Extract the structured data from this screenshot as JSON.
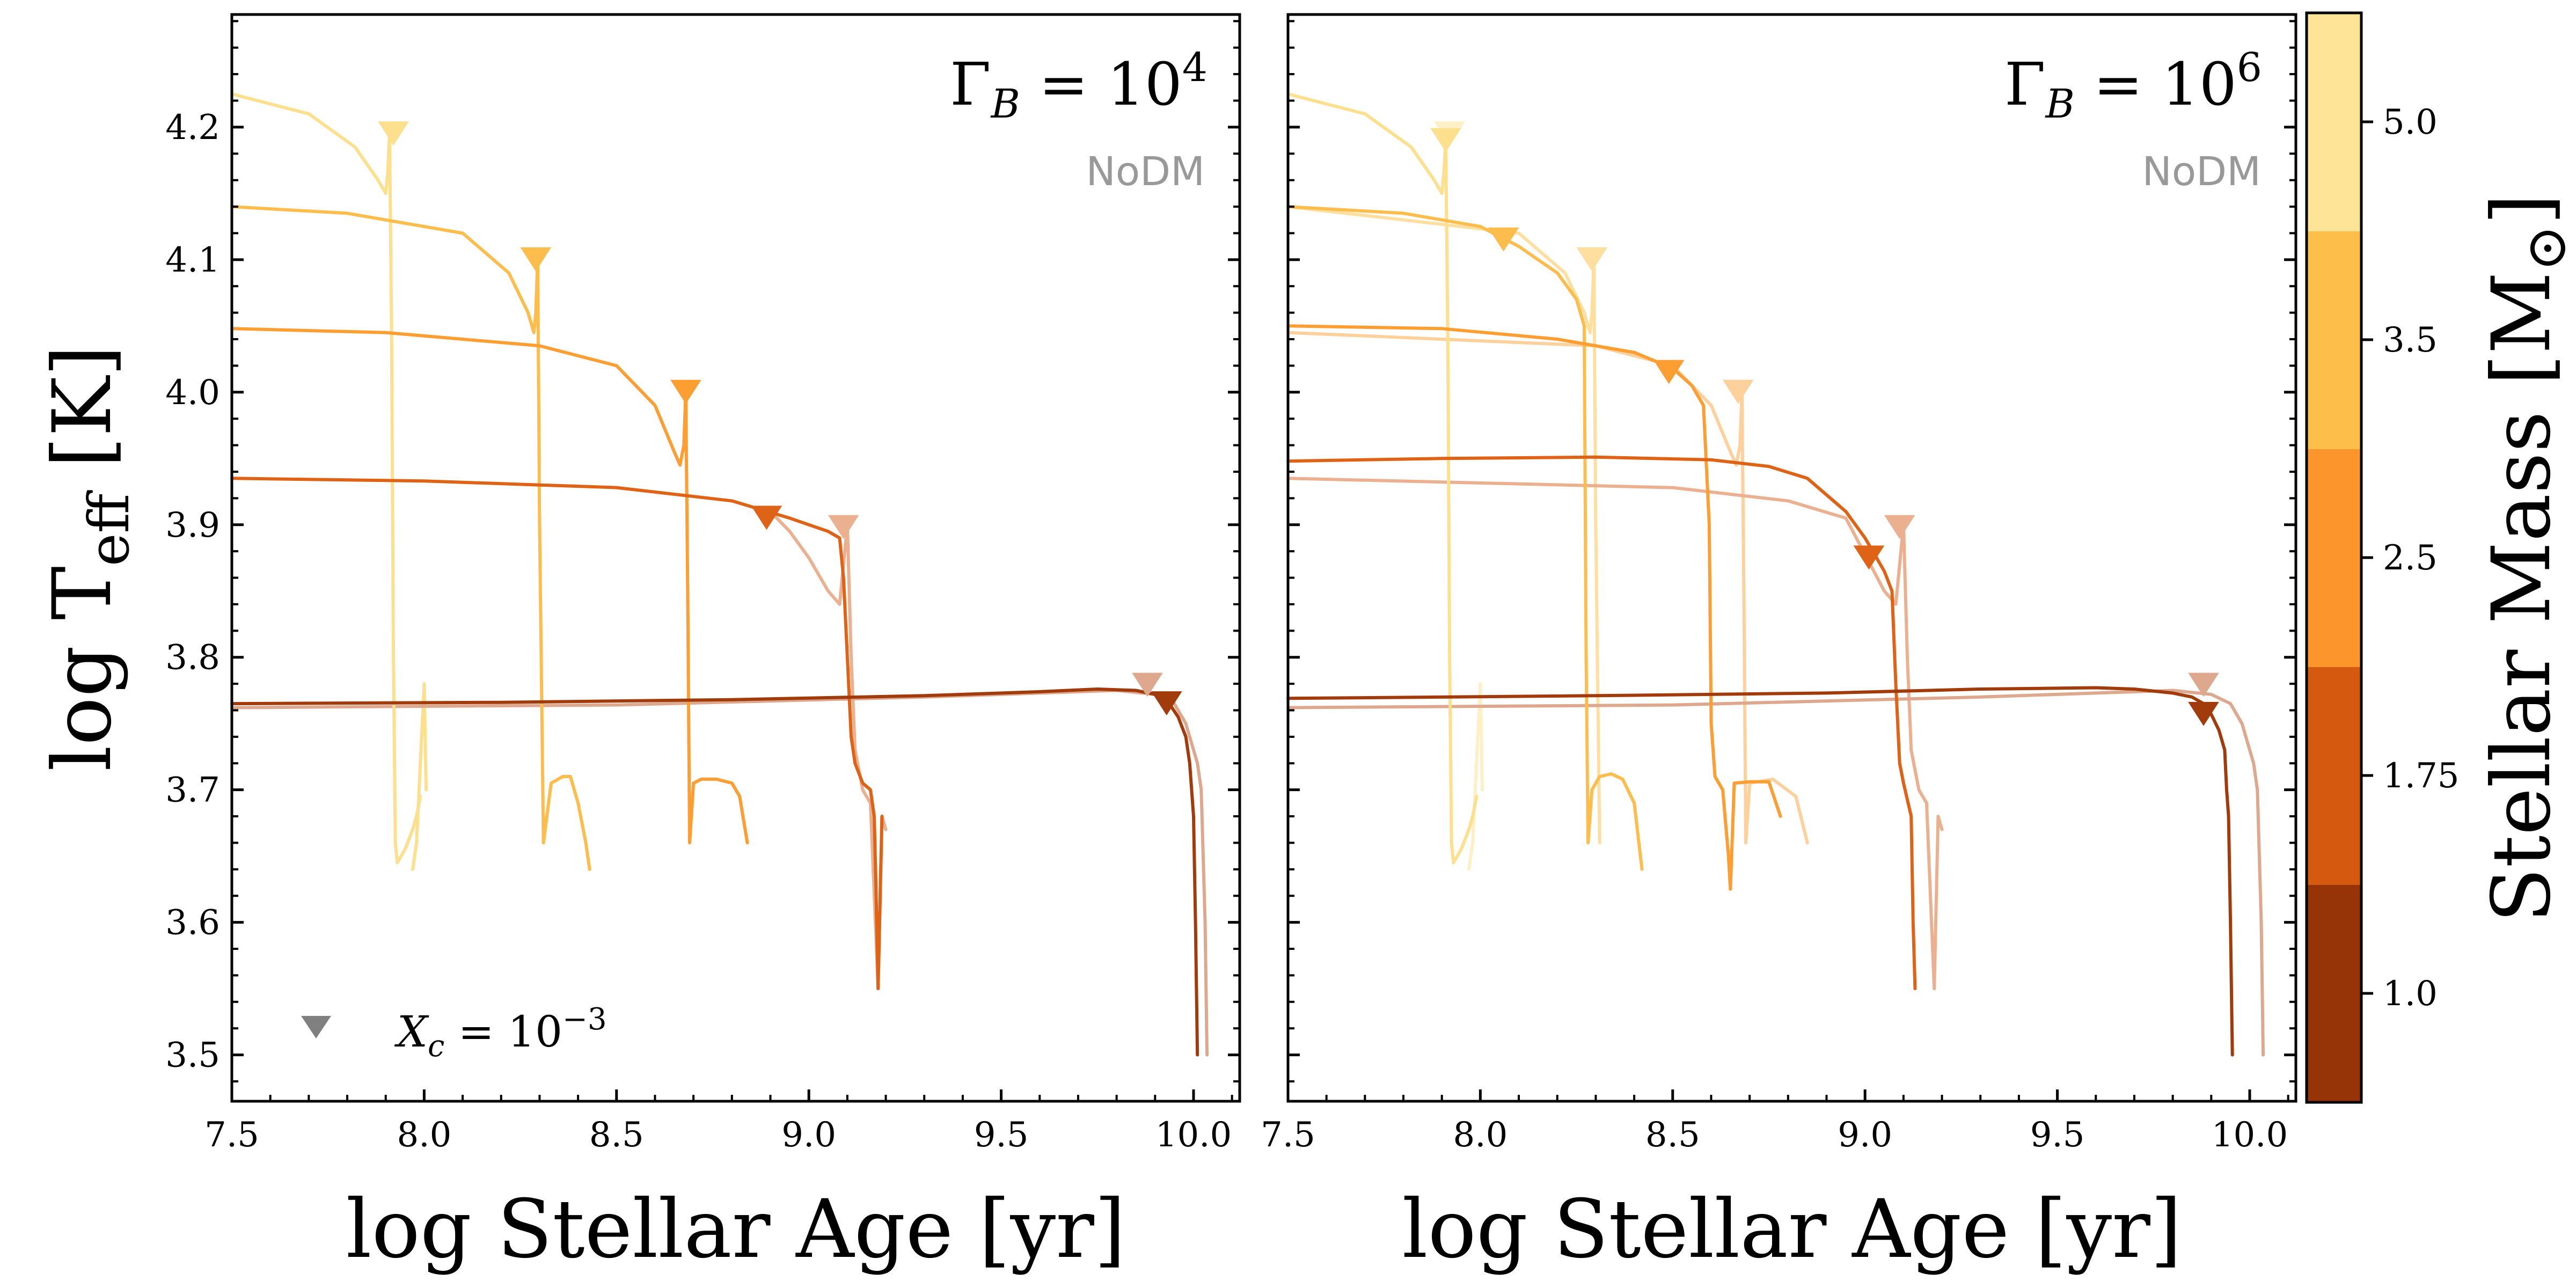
{
  "chart_data": [
    {
      "type": "line",
      "panel_label": "Γ_B = 10^4",
      "label_main": "Γ",
      "label_sub": "B",
      "label_eq": " = 10",
      "label_sup": "4",
      "reference_label": "NoDM",
      "xlabel": "log Stellar Age [yr]",
      "ylabel": "log T_eff [K]",
      "ylabel_text": "log T",
      "ylabel_sub": "eff",
      "ylabel_unit": " [K]",
      "xlim": [
        7.5,
        10.12
      ],
      "ylim": [
        3.465,
        4.285
      ],
      "xticks": [
        "7.5",
        "8.0",
        "8.5",
        "9.0",
        "9.5",
        "10.0"
      ],
      "yticks": [
        "3.5",
        "3.6",
        "3.7",
        "3.8",
        "3.9",
        "4.0",
        "4.1",
        "4.2"
      ],
      "marker_legend": "X_c = 10^-3",
      "marker_legend_main": "X",
      "marker_legend_sub": "c",
      "marker_legend_eq": " = 10",
      "marker_legend_sup": "−3",
      "series": [
        {
          "mass": 5.0,
          "color": "#fde08d",
          "variant": "DM",
          "x": [
            7.5,
            7.7,
            7.82,
            7.88,
            7.9,
            7.905,
            7.91,
            7.915,
            7.92,
            7.925,
            7.93,
            7.95,
            7.97,
            7.98,
            7.99
          ],
          "y": [
            4.225,
            4.21,
            4.185,
            4.16,
            4.15,
            4.165,
            4.195,
            4.05,
            3.8,
            3.66,
            3.645,
            3.655,
            3.67,
            3.68,
            3.695
          ],
          "marker": [
            7.92,
            4.195
          ]
        },
        {
          "mass": 5.0,
          "color": "#fde08d",
          "variant": "NoDM",
          "x": [
            7.97,
            7.98,
            7.99,
            8.0,
            8.005
          ],
          "y": [
            3.64,
            3.66,
            3.72,
            3.78,
            3.7
          ],
          "marker": null
        },
        {
          "mass": 3.5,
          "color": "#fdbd4c",
          "variant": "DM",
          "x": [
            7.5,
            7.8,
            8.1,
            8.22,
            8.27,
            8.285,
            8.29,
            8.295,
            8.3,
            8.31,
            8.33,
            8.36,
            8.38,
            8.4,
            8.42,
            8.43
          ],
          "y": [
            4.14,
            4.135,
            4.12,
            4.09,
            4.06,
            4.045,
            4.06,
            4.1,
            3.9,
            3.66,
            3.705,
            3.71,
            3.71,
            3.69,
            3.66,
            3.64
          ],
          "marker": [
            8.29,
            4.1
          ]
        },
        {
          "mass": 2.5,
          "color": "#fd9e32",
          "variant": "DM",
          "x": [
            7.5,
            7.9,
            8.3,
            8.5,
            8.6,
            8.65,
            8.665,
            8.675,
            8.68,
            8.685,
            8.69,
            8.7,
            8.72,
            8.76,
            8.8,
            8.82,
            8.84
          ],
          "y": [
            4.048,
            4.045,
            4.035,
            4.02,
            3.99,
            3.955,
            3.945,
            3.96,
            4.0,
            3.85,
            3.66,
            3.705,
            3.708,
            3.708,
            3.705,
            3.695,
            3.66
          ],
          "marker": [
            8.68,
            4.0
          ]
        },
        {
          "mass": 1.75,
          "color": "#df6316",
          "variant": "DM",
          "x": [
            7.5,
            8.0,
            8.5,
            8.8,
            8.95,
            9.05,
            9.08,
            9.09,
            9.1,
            9.11,
            9.12,
            9.14,
            9.16,
            9.17,
            9.175,
            9.18,
            9.19
          ],
          "y": [
            3.935,
            3.933,
            3.928,
            3.918,
            3.905,
            3.895,
            3.89,
            3.86,
            3.8,
            3.74,
            3.72,
            3.705,
            3.7,
            3.68,
            3.62,
            3.55,
            3.68
          ],
          "marker": [
            8.89,
            3.905
          ]
        },
        {
          "mass": 1.75,
          "color": "#ebb08f",
          "variant": "NoDM",
          "x": [
            8.9,
            8.95,
            9.0,
            9.05,
            9.08,
            9.09,
            9.1,
            9.11,
            9.12,
            9.14,
            9.16,
            9.18,
            9.19,
            9.2
          ],
          "y": [
            3.91,
            3.895,
            3.875,
            3.85,
            3.84,
            3.87,
            3.9,
            3.8,
            3.73,
            3.7,
            3.69,
            3.55,
            3.68,
            3.67
          ],
          "marker": [
            9.09,
            3.898
          ]
        },
        {
          "mass": 1.0,
          "color": "#a13b0b",
          "variant": "DM",
          "x": [
            7.5,
            8.2,
            8.8,
            9.3,
            9.6,
            9.75,
            9.85,
            9.9,
            9.93,
            9.96,
            9.98,
            9.99,
            9.995,
            10.0,
            10.005,
            10.01
          ],
          "y": [
            3.765,
            3.766,
            3.768,
            3.771,
            3.774,
            3.776,
            3.775,
            3.772,
            3.768,
            3.755,
            3.74,
            3.72,
            3.7,
            3.68,
            3.6,
            3.5
          ],
          "marker": [
            9.93,
            3.765
          ]
        },
        {
          "mass": 1.0,
          "color": "#dda88d",
          "variant": "NoDM",
          "x": [
            7.5,
            8.5,
            9.3,
            9.8,
            9.9,
            9.95,
            9.98,
            10.0,
            10.01,
            10.02,
            10.03,
            10.035
          ],
          "y": [
            3.762,
            3.764,
            3.77,
            3.775,
            3.772,
            3.765,
            3.75,
            3.73,
            3.72,
            3.7,
            3.6,
            3.5
          ],
          "marker": [
            9.88,
            3.779
          ]
        }
      ]
    },
    {
      "type": "line",
      "panel_label": "Γ_B = 10^6",
      "label_main": "Γ",
      "label_sub": "B",
      "label_eq": " = 10",
      "label_sup": "6",
      "reference_label": "NoDM",
      "xlabel": "log Stellar Age [yr]",
      "xlim": [
        7.5,
        10.12
      ],
      "ylim": [
        3.465,
        4.285
      ],
      "xticks": [
        "7.5",
        "8.0",
        "8.5",
        "9.0",
        "9.5",
        "10.0"
      ],
      "series": [
        {
          "mass": 5.0,
          "color": "#fde08d",
          "variant": "DM",
          "x": [
            7.5,
            7.7,
            7.82,
            7.88,
            7.9,
            7.905,
            7.91,
            7.915,
            7.92,
            7.925,
            7.93,
            7.95,
            7.97,
            7.98,
            7.99
          ],
          "y": [
            4.225,
            4.21,
            4.185,
            4.16,
            4.15,
            4.165,
            4.19,
            4.05,
            3.8,
            3.66,
            3.645,
            3.655,
            3.67,
            3.68,
            3.695
          ],
          "marker": [
            7.91,
            4.19
          ]
        },
        {
          "mass": 5.0,
          "color": "#fef0c6",
          "variant": "NoDM",
          "x": [
            7.97,
            7.98,
            7.99,
            8.0,
            8.005
          ],
          "y": [
            3.64,
            3.66,
            3.72,
            3.78,
            3.7
          ],
          "marker": [
            7.92,
            4.195
          ]
        },
        {
          "mass": 3.5,
          "color": "#fdbd4c",
          "variant": "DM",
          "x": [
            7.5,
            7.8,
            8.0,
            8.1,
            8.2,
            8.25,
            8.27,
            8.275,
            8.28,
            8.29,
            8.31,
            8.34,
            8.37,
            8.4,
            8.42
          ],
          "y": [
            4.14,
            4.135,
            4.125,
            4.11,
            4.09,
            4.07,
            4.05,
            3.8,
            3.66,
            3.7,
            3.71,
            3.712,
            3.708,
            3.69,
            3.64
          ],
          "marker": [
            8.06,
            4.115
          ]
        },
        {
          "mass": 3.5,
          "color": "#fedfa0",
          "variant": "NoDM",
          "x": [
            7.5,
            8.1,
            8.22,
            8.27,
            8.285,
            8.29,
            8.295,
            8.3,
            8.31
          ],
          "y": [
            4.14,
            4.12,
            4.09,
            4.06,
            4.045,
            4.06,
            4.1,
            3.9,
            3.66
          ],
          "marker": [
            8.29,
            4.1
          ]
        },
        {
          "mass": 2.5,
          "color": "#fd9e32",
          "variant": "DM",
          "x": [
            7.5,
            7.9,
            8.2,
            8.4,
            8.5,
            8.55,
            8.58,
            8.595,
            8.6,
            8.61,
            8.63,
            8.645,
            8.65,
            8.66,
            8.7,
            8.75,
            8.78
          ],
          "y": [
            4.05,
            4.048,
            4.04,
            4.03,
            4.018,
            4.005,
            3.99,
            3.9,
            3.75,
            3.71,
            3.7,
            3.65,
            3.625,
            3.705,
            3.706,
            3.706,
            3.68
          ],
          "marker": [
            8.49,
            4.015
          ]
        },
        {
          "mass": 2.5,
          "color": "#fdd09c",
          "variant": "NoDM",
          "x": [
            7.5,
            8.3,
            8.5,
            8.6,
            8.65,
            8.665,
            8.675,
            8.68,
            8.685,
            8.69,
            8.7,
            8.76,
            8.82,
            8.85
          ],
          "y": [
            4.045,
            4.035,
            4.02,
            3.99,
            3.955,
            3.945,
            3.96,
            4.0,
            3.85,
            3.66,
            3.705,
            3.708,
            3.695,
            3.66
          ],
          "marker": [
            8.67,
            4.0
          ]
        },
        {
          "mass": 1.75,
          "color": "#df6316",
          "variant": "DM",
          "x": [
            7.5,
            7.9,
            8.3,
            8.6,
            8.75,
            8.85,
            8.95,
            9.0,
            9.03,
            9.05,
            9.07,
            9.08,
            9.09,
            9.1,
            9.12,
            9.125,
            9.13
          ],
          "y": [
            3.948,
            3.95,
            3.951,
            3.949,
            3.944,
            3.935,
            3.91,
            3.89,
            3.875,
            3.865,
            3.85,
            3.78,
            3.72,
            3.705,
            3.68,
            3.6,
            3.55
          ],
          "marker": [
            9.01,
            3.875
          ]
        },
        {
          "mass": 1.75,
          "color": "#ebb08f",
          "variant": "NoDM",
          "x": [
            7.5,
            8.5,
            8.8,
            8.95,
            9.05,
            9.08,
            9.09,
            9.1,
            9.11,
            9.12,
            9.14,
            9.16,
            9.18,
            9.19,
            9.2
          ],
          "y": [
            3.935,
            3.928,
            3.918,
            3.905,
            3.85,
            3.84,
            3.87,
            3.9,
            3.8,
            3.73,
            3.7,
            3.69,
            3.55,
            3.68,
            3.67
          ],
          "marker": [
            9.09,
            3.898
          ]
        },
        {
          "mass": 1.0,
          "color": "#a13b0b",
          "variant": "DM",
          "x": [
            7.5,
            8.3,
            8.9,
            9.3,
            9.6,
            9.7,
            9.8,
            9.85,
            9.88,
            9.9,
            9.92,
            9.935,
            9.94,
            9.945,
            9.95,
            9.955
          ],
          "y": [
            3.769,
            3.771,
            3.773,
            3.776,
            3.777,
            3.776,
            3.773,
            3.77,
            3.765,
            3.757,
            3.745,
            3.73,
            3.7,
            3.68,
            3.6,
            3.5
          ],
          "marker": [
            9.88,
            3.757
          ]
        },
        {
          "mass": 1.0,
          "color": "#dda88d",
          "variant": "NoDM",
          "x": [
            7.5,
            8.5,
            9.3,
            9.8,
            9.9,
            9.95,
            9.98,
            10.0,
            10.01,
            10.02,
            10.03,
            10.035
          ],
          "y": [
            3.762,
            3.764,
            3.77,
            3.775,
            3.772,
            3.765,
            3.75,
            3.73,
            3.72,
            3.7,
            3.6,
            3.5
          ],
          "marker": [
            9.88,
            3.779
          ]
        }
      ]
    }
  ],
  "colorbar": {
    "label": "Stellar Mass [M⊙]",
    "label_text": "Stellar Mass [M",
    "label_sym": "⊙",
    "label_end": "]",
    "ticks": [
      "1.0",
      "1.75",
      "2.5",
      "3.5",
      "5.0"
    ],
    "colors": [
      "#963408",
      "#d55a0f",
      "#fc962c",
      "#fdbe4a",
      "#fee496"
    ],
    "marker_color": "#808080"
  }
}
